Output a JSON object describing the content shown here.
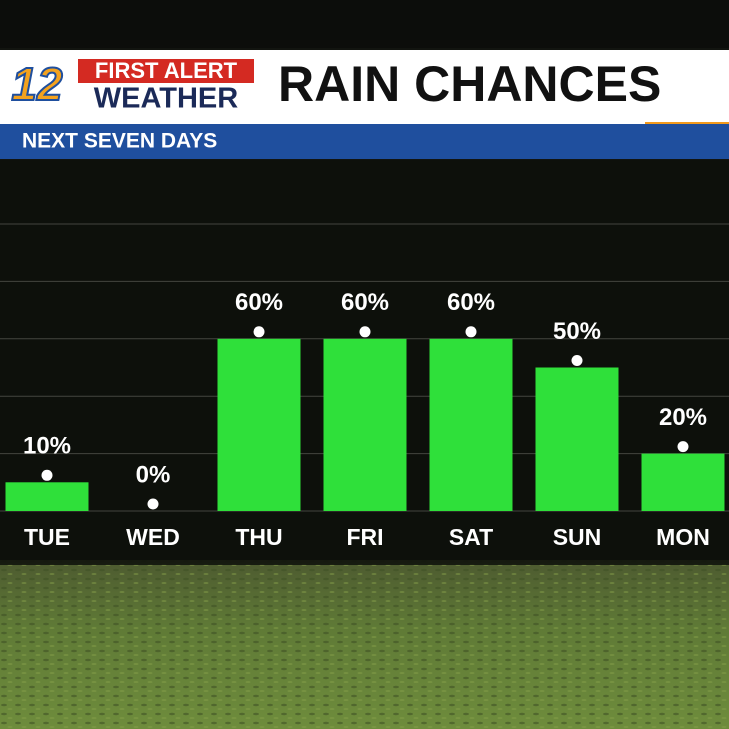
{
  "branding": {
    "channel": "12",
    "line1": "FIRST ALERT",
    "line2": "WEATHER"
  },
  "chart_data": {
    "type": "bar",
    "title": "RAIN CHANCES",
    "subtitle": "NEXT SEVEN DAYS",
    "categories": [
      "TUE",
      "WED",
      "THU",
      "FRI",
      "SAT",
      "SUN",
      "MON"
    ],
    "values": [
      10,
      0,
      60,
      60,
      60,
      50,
      20
    ],
    "value_labels": [
      "10%",
      "0%",
      "60%",
      "60%",
      "60%",
      "50%",
      "20%"
    ],
    "color": "#2fe03a",
    "ylim": [
      0,
      100
    ],
    "yticks": [
      0,
      20,
      40,
      60,
      80,
      100
    ],
    "grid": true
  }
}
